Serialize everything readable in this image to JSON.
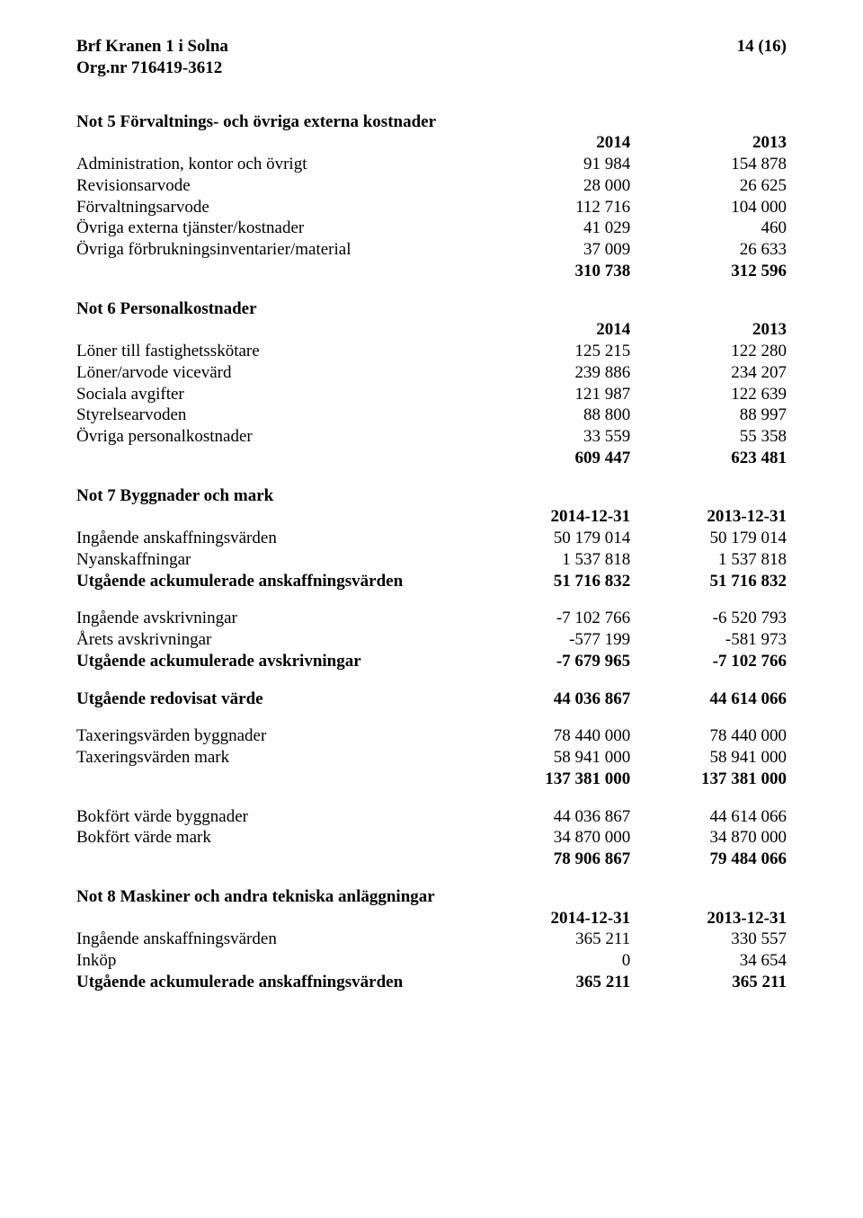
{
  "header": {
    "org_name": "Brf Kranen 1 i Solna",
    "org_no_label": "Org.nr 716419-3612",
    "page_marker": "14 (16)"
  },
  "note5": {
    "title": "Not 5 Förvaltnings- och övriga externa kostnader",
    "cols": {
      "c1": "2014",
      "c2": "2013"
    },
    "rows": [
      {
        "label": "Administration, kontor och övrigt",
        "v1": "91 984",
        "v2": "154 878"
      },
      {
        "label": "Revisionsarvode",
        "v1": "28 000",
        "v2": "26 625"
      },
      {
        "label": "Förvaltningsarvode",
        "v1": "112 716",
        "v2": "104 000"
      },
      {
        "label": "Övriga externa tjänster/kostnader",
        "v1": "41 029",
        "v2": "460"
      },
      {
        "label": "Övriga förbrukningsinventarier/material",
        "v1": "37 009",
        "v2": "26 633"
      }
    ],
    "sum": {
      "v1": "310 738",
      "v2": "312 596"
    }
  },
  "note6": {
    "title": "Not 6 Personalkostnader",
    "cols": {
      "c1": "2014",
      "c2": "2013"
    },
    "rows": [
      {
        "label": "Löner till fastighetsskötare",
        "v1": "125 215",
        "v2": "122 280"
      },
      {
        "label": "Löner/arvode vicevärd",
        "v1": "239 886",
        "v2": "234 207"
      },
      {
        "label": "Sociala avgifter",
        "v1": "121 987",
        "v2": "122 639"
      },
      {
        "label": "Styrelsearvoden",
        "v1": "88 800",
        "v2": "88 997"
      },
      {
        "label": "Övriga personalkostnader",
        "v1": "33 559",
        "v2": "55 358"
      }
    ],
    "sum": {
      "v1": "609 447",
      "v2": "623 481"
    }
  },
  "note7": {
    "title": "Not 7 Byggnader och mark",
    "cols": {
      "c1": "2014-12-31",
      "c2": "2013-12-31"
    },
    "block1": {
      "rows": [
        {
          "label": "Ingående anskaffningsvärden",
          "v1": "50 179 014",
          "v2": "50 179 014"
        },
        {
          "label": "Nyanskaffningar",
          "v1": "1 537 818",
          "v2": "1 537 818"
        }
      ],
      "sum": {
        "label": "Utgående ackumulerade anskaffningsvärden",
        "v1": "51 716 832",
        "v2": "51 716 832"
      }
    },
    "block2": {
      "rows": [
        {
          "label": "Ingående avskrivningar",
          "v1": "-7 102 766",
          "v2": "-6 520 793"
        },
        {
          "label": "Årets avskrivningar",
          "v1": "-577 199",
          "v2": "-581 973"
        }
      ],
      "sum": {
        "label": "Utgående ackumulerade avskrivningar",
        "v1": "-7 679 965",
        "v2": "-7 102 766"
      }
    },
    "redovisat": {
      "label": "Utgående redovisat värde",
      "v1": "44 036 867",
      "v2": "44 614 066"
    },
    "tax": {
      "rows": [
        {
          "label": "Taxeringsvärden byggnader",
          "v1": "78 440 000",
          "v2": "78 440 000"
        },
        {
          "label": "Taxeringsvärden mark",
          "v1": "58 941 000",
          "v2": "58 941 000"
        }
      ],
      "sum": {
        "v1": "137 381 000",
        "v2": "137 381 000"
      }
    },
    "bokfort": {
      "rows": [
        {
          "label": "Bokfört värde byggnader",
          "v1": "44 036 867",
          "v2": "44 614 066"
        },
        {
          "label": "Bokfört värde mark",
          "v1": "34 870 000",
          "v2": "34 870 000"
        }
      ],
      "sum": {
        "v1": "78 906 867",
        "v2": "79 484 066"
      }
    }
  },
  "note8": {
    "title": "Not 8 Maskiner och andra tekniska anläggningar",
    "cols": {
      "c1": "2014-12-31",
      "c2": "2013-12-31"
    },
    "rows": [
      {
        "label": "Ingående anskaffningsvärden",
        "v1": "365 211",
        "v2": "330 557"
      },
      {
        "label": "Inköp",
        "v1": "0",
        "v2": "34 654"
      }
    ],
    "sum": {
      "label": "Utgående ackumulerade anskaffningsvärden",
      "v1": "365 211",
      "v2": "365 211"
    }
  }
}
